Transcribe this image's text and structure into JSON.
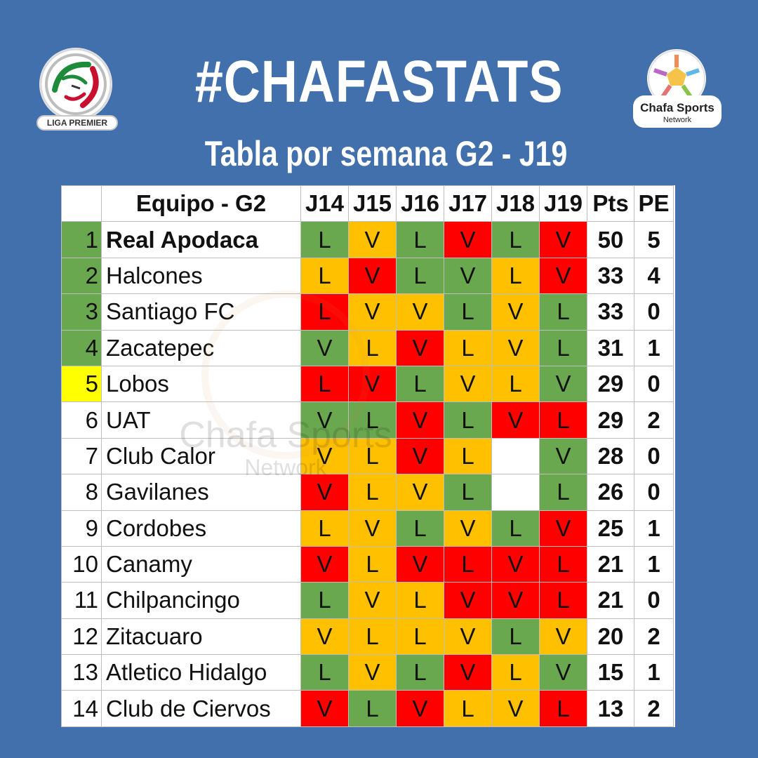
{
  "header": {
    "title": "#CHAFASTATS",
    "subtitle": "Tabla por semana G2 - J19"
  },
  "logos": {
    "left_badge": "LIGA PREMIER",
    "right_line1": "Chafa Sports",
    "right_line2": "Network"
  },
  "watermark": {
    "line1": "Chafa Sports",
    "line2": "Network"
  },
  "colors": {
    "background": "#4170ad",
    "green": "#6aa84f",
    "orange": "#ffc000",
    "red": "#ff0000",
    "yellow": "#ffff00",
    "white": "#ffffff"
  },
  "table": {
    "headers": [
      "",
      "Equipo - G2",
      "J14",
      "J15",
      "J16",
      "J17",
      "J18",
      "J19",
      "Pts",
      "PE"
    ],
    "rows": [
      {
        "rank": "1",
        "team": "Real Apodaca",
        "rank_color": "green",
        "bold": true,
        "results": [
          {
            "v": "L",
            "c": "green"
          },
          {
            "v": "V",
            "c": "orange"
          },
          {
            "v": "L",
            "c": "green"
          },
          {
            "v": "V",
            "c": "red"
          },
          {
            "v": "L",
            "c": "green"
          },
          {
            "v": "V",
            "c": "red"
          }
        ],
        "pts": "50",
        "pe": "5"
      },
      {
        "rank": "2",
        "team": "Halcones",
        "rank_color": "green",
        "bold": false,
        "results": [
          {
            "v": "L",
            "c": "orange"
          },
          {
            "v": "V",
            "c": "red"
          },
          {
            "v": "L",
            "c": "green"
          },
          {
            "v": "V",
            "c": "green"
          },
          {
            "v": "L",
            "c": "orange"
          },
          {
            "v": "V",
            "c": "red"
          }
        ],
        "pts": "33",
        "pe": "4"
      },
      {
        "rank": "3",
        "team": "Santiago FC",
        "rank_color": "green",
        "bold": false,
        "results": [
          {
            "v": "L",
            "c": "red"
          },
          {
            "v": "V",
            "c": "orange"
          },
          {
            "v": "V",
            "c": "orange"
          },
          {
            "v": "L",
            "c": "green"
          },
          {
            "v": "V",
            "c": "orange"
          },
          {
            "v": "L",
            "c": "green"
          }
        ],
        "pts": "33",
        "pe": "0"
      },
      {
        "rank": "4",
        "team": "Zacatepec",
        "rank_color": "green",
        "bold": false,
        "results": [
          {
            "v": "V",
            "c": "green"
          },
          {
            "v": "L",
            "c": "orange"
          },
          {
            "v": "V",
            "c": "red"
          },
          {
            "v": "L",
            "c": "orange"
          },
          {
            "v": "V",
            "c": "orange"
          },
          {
            "v": "L",
            "c": "green"
          }
        ],
        "pts": "31",
        "pe": "1"
      },
      {
        "rank": "5",
        "team": "Lobos",
        "rank_color": "yellow",
        "bold": false,
        "results": [
          {
            "v": "L",
            "c": "red"
          },
          {
            "v": "V",
            "c": "red"
          },
          {
            "v": "L",
            "c": "green"
          },
          {
            "v": "V",
            "c": "orange"
          },
          {
            "v": "L",
            "c": "orange"
          },
          {
            "v": "V",
            "c": "green"
          }
        ],
        "pts": "29",
        "pe": "0"
      },
      {
        "rank": "6",
        "team": "UAT",
        "rank_color": "white",
        "bold": false,
        "results": [
          {
            "v": "V",
            "c": "green"
          },
          {
            "v": "L",
            "c": "green"
          },
          {
            "v": "V",
            "c": "red"
          },
          {
            "v": "L",
            "c": "green"
          },
          {
            "v": "V",
            "c": "red"
          },
          {
            "v": "L",
            "c": "red"
          }
        ],
        "pts": "29",
        "pe": "2"
      },
      {
        "rank": "7",
        "team": "Club Calor",
        "rank_color": "white",
        "bold": false,
        "results": [
          {
            "v": "V",
            "c": "orange"
          },
          {
            "v": "L",
            "c": "orange"
          },
          {
            "v": "V",
            "c": "red"
          },
          {
            "v": "L",
            "c": "orange"
          },
          {
            "v": "",
            "c": "white"
          },
          {
            "v": "V",
            "c": "green"
          }
        ],
        "pts": "28",
        "pe": "0"
      },
      {
        "rank": "8",
        "team": "Gavilanes",
        "rank_color": "white",
        "bold": false,
        "results": [
          {
            "v": "V",
            "c": "red"
          },
          {
            "v": "L",
            "c": "orange"
          },
          {
            "v": "V",
            "c": "orange"
          },
          {
            "v": "L",
            "c": "green"
          },
          {
            "v": "",
            "c": "white"
          },
          {
            "v": "L",
            "c": "green"
          }
        ],
        "pts": "26",
        "pe": "0"
      },
      {
        "rank": "9",
        "team": "Cordobes",
        "rank_color": "white",
        "bold": false,
        "results": [
          {
            "v": "L",
            "c": "orange"
          },
          {
            "v": "V",
            "c": "orange"
          },
          {
            "v": "L",
            "c": "green"
          },
          {
            "v": "V",
            "c": "orange"
          },
          {
            "v": "L",
            "c": "green"
          },
          {
            "v": "V",
            "c": "red"
          }
        ],
        "pts": "25",
        "pe": "1"
      },
      {
        "rank": "10",
        "team": "Canamy",
        "rank_color": "white",
        "bold": false,
        "results": [
          {
            "v": "V",
            "c": "red"
          },
          {
            "v": "L",
            "c": "orange"
          },
          {
            "v": "V",
            "c": "red"
          },
          {
            "v": "L",
            "c": "red"
          },
          {
            "v": "V",
            "c": "red"
          },
          {
            "v": "L",
            "c": "red"
          }
        ],
        "pts": "21",
        "pe": "1"
      },
      {
        "rank": "11",
        "team": "Chilpancingo",
        "rank_color": "white",
        "bold": false,
        "results": [
          {
            "v": "L",
            "c": "green"
          },
          {
            "v": "V",
            "c": "orange"
          },
          {
            "v": "L",
            "c": "orange"
          },
          {
            "v": "V",
            "c": "red"
          },
          {
            "v": "V",
            "c": "red"
          },
          {
            "v": "L",
            "c": "red"
          }
        ],
        "pts": "21",
        "pe": "0"
      },
      {
        "rank": "12",
        "team": "Zitacuaro",
        "rank_color": "white",
        "bold": false,
        "results": [
          {
            "v": "V",
            "c": "orange"
          },
          {
            "v": "L",
            "c": "orange"
          },
          {
            "v": "L",
            "c": "orange"
          },
          {
            "v": "V",
            "c": "orange"
          },
          {
            "v": "L",
            "c": "green"
          },
          {
            "v": "V",
            "c": "orange"
          }
        ],
        "pts": "20",
        "pe": "2"
      },
      {
        "rank": "13",
        "team": "Atletico Hidalgo",
        "rank_color": "white",
        "bold": false,
        "results": [
          {
            "v": "L",
            "c": "green"
          },
          {
            "v": "V",
            "c": "orange"
          },
          {
            "v": "L",
            "c": "green"
          },
          {
            "v": "V",
            "c": "red"
          },
          {
            "v": "L",
            "c": "orange"
          },
          {
            "v": "V",
            "c": "green"
          }
        ],
        "pts": "15",
        "pe": "1"
      },
      {
        "rank": "14",
        "team": "Club de Ciervos",
        "rank_color": "white",
        "bold": false,
        "results": [
          {
            "v": "V",
            "c": "red"
          },
          {
            "v": "L",
            "c": "green"
          },
          {
            "v": "V",
            "c": "red"
          },
          {
            "v": "L",
            "c": "orange"
          },
          {
            "v": "V",
            "c": "orange"
          },
          {
            "v": "L",
            "c": "red"
          }
        ],
        "pts": "13",
        "pe": "2"
      }
    ]
  }
}
